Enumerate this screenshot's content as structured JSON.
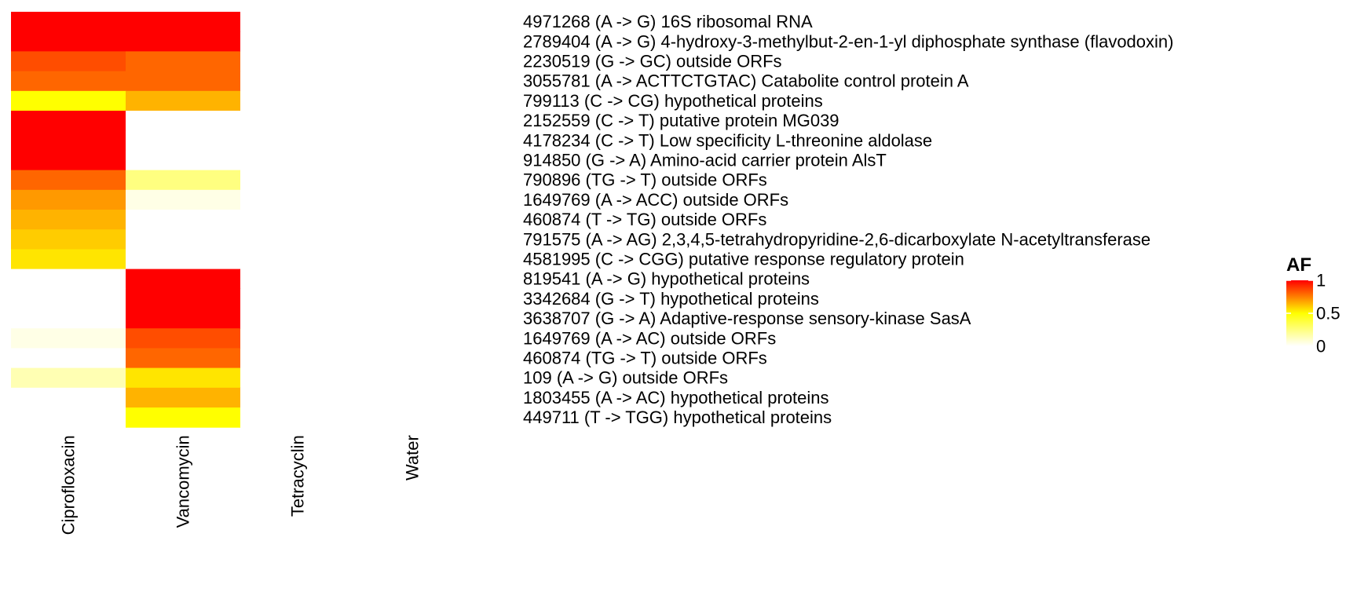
{
  "chart_data": {
    "type": "heatmap",
    "columns": [
      "Ciprofloxacin",
      "Vancomycin",
      "Tetracyclin",
      "Water"
    ],
    "rows": [
      "4971268 (A -> G) 16S ribosomal RNA",
      "2789404 (A -> G) 4-hydroxy-3-methylbut-2-en-1-yl diphosphate synthase (flavodoxin)",
      "2230519 (G -> GC) outside ORFs",
      "3055781 (A -> ACTTCTGTAC) Catabolite control protein A",
      "799113 (C -> CG) hypothetical proteins",
      "2152559 (C -> T) putative protein MG039",
      "4178234 (C -> T) Low specificity L-threonine aldolase",
      "914850 (G -> A) Amino-acid carrier protein AlsT",
      "790896 (TG -> T) outside ORFs",
      "1649769 (A -> ACC) outside ORFs",
      "460874 (T -> TG) outside ORFs",
      "791575 (A -> AG) 2,3,4,5-tetrahydropyridine-2,6-dicarboxylate N-acetyltransferase",
      "4581995 (C -> CGG) putative response regulatory protein",
      "819541 (A -> G) hypothetical proteins",
      "3342684 (G -> T) hypothetical proteins",
      "3638707 (G -> A) Adaptive-response sensory-kinase SasA",
      "1649769 (A -> AC) outside ORFs",
      "460874 (TG -> T) outside ORFs",
      "109 (A -> G) outside ORFs",
      "1803455 (A -> AC) hypothetical proteins",
      "449711 (T -> TGG) hypothetical proteins"
    ],
    "values": [
      [
        1.0,
        1.0,
        0,
        0
      ],
      [
        1.0,
        1.0,
        0,
        0
      ],
      [
        0.85,
        0.8,
        0,
        0
      ],
      [
        0.8,
        0.8,
        0,
        0
      ],
      [
        0.5,
        0.65,
        0,
        0
      ],
      [
        1.0,
        0,
        0,
        0
      ],
      [
        1.0,
        0,
        0,
        0
      ],
      [
        1.0,
        0,
        0,
        0
      ],
      [
        0.8,
        0.25,
        0,
        0
      ],
      [
        0.7,
        0.05,
        0,
        0
      ],
      [
        0.65,
        0,
        0,
        0
      ],
      [
        0.6,
        0,
        0,
        0
      ],
      [
        0.55,
        0,
        0,
        0
      ],
      [
        0,
        1.0,
        0,
        0
      ],
      [
        0,
        1.0,
        0,
        0
      ],
      [
        0,
        1.0,
        0,
        0
      ],
      [
        0.05,
        0.85,
        0,
        0
      ],
      [
        0,
        0.8,
        0,
        0
      ],
      [
        0.15,
        0.55,
        0,
        0
      ],
      [
        0,
        0.65,
        0,
        0
      ],
      [
        0,
        0.5,
        0,
        0
      ]
    ],
    "legend": {
      "title": "AF",
      "ticks": [
        1,
        0.5,
        0
      ],
      "tick_labels": [
        "1",
        "0.5",
        "0"
      ],
      "min": 0,
      "max": 1,
      "placement": "right"
    },
    "color_scale": {
      "low": "#ffffff",
      "mid": "#ffff00",
      "high": "#ff0000"
    }
  }
}
